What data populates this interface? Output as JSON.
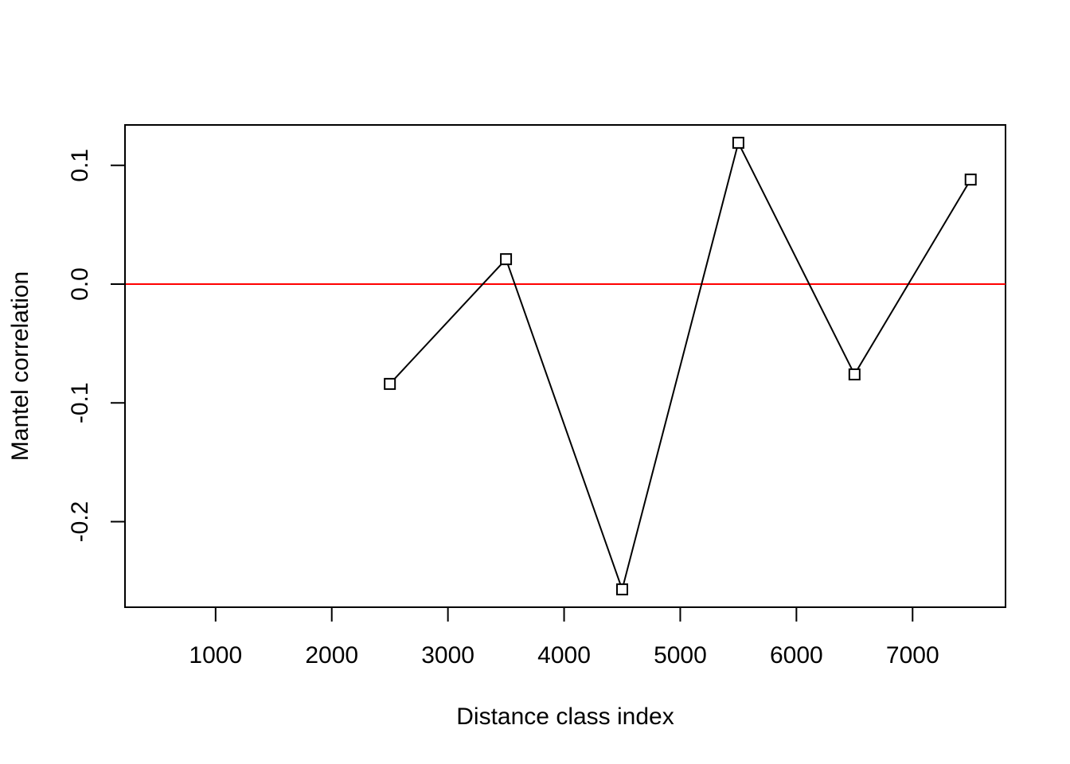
{
  "chart_data": {
    "type": "line",
    "title": "",
    "xlabel": "Distance class index",
    "ylabel": "Mantel correlation",
    "xlim": [
      220,
      7800
    ],
    "ylim": [
      -0.272,
      0.134
    ],
    "xticks": [
      1000,
      2000,
      3000,
      4000,
      5000,
      6000,
      7000
    ],
    "xtick_labels": [
      "1000",
      "2000",
      "3000",
      "4000",
      "5000",
      "6000",
      "7000"
    ],
    "yticks": [
      -0.2,
      -0.1,
      0.0,
      0.1
    ],
    "ytick_labels": [
      "-0.2",
      "-0.1",
      "0.0",
      "0.1"
    ],
    "series": [
      {
        "marker": "open-square",
        "color": "#000000",
        "x": [
          2500,
          3500,
          4500,
          5500,
          6500,
          7500
        ],
        "y": [
          -0.084,
          0.021,
          -0.257,
          0.119,
          -0.076,
          0.088
        ]
      }
    ],
    "reference_line": {
      "y": 0.0,
      "color": "#ff0000"
    },
    "grid": false,
    "legend": "none"
  }
}
